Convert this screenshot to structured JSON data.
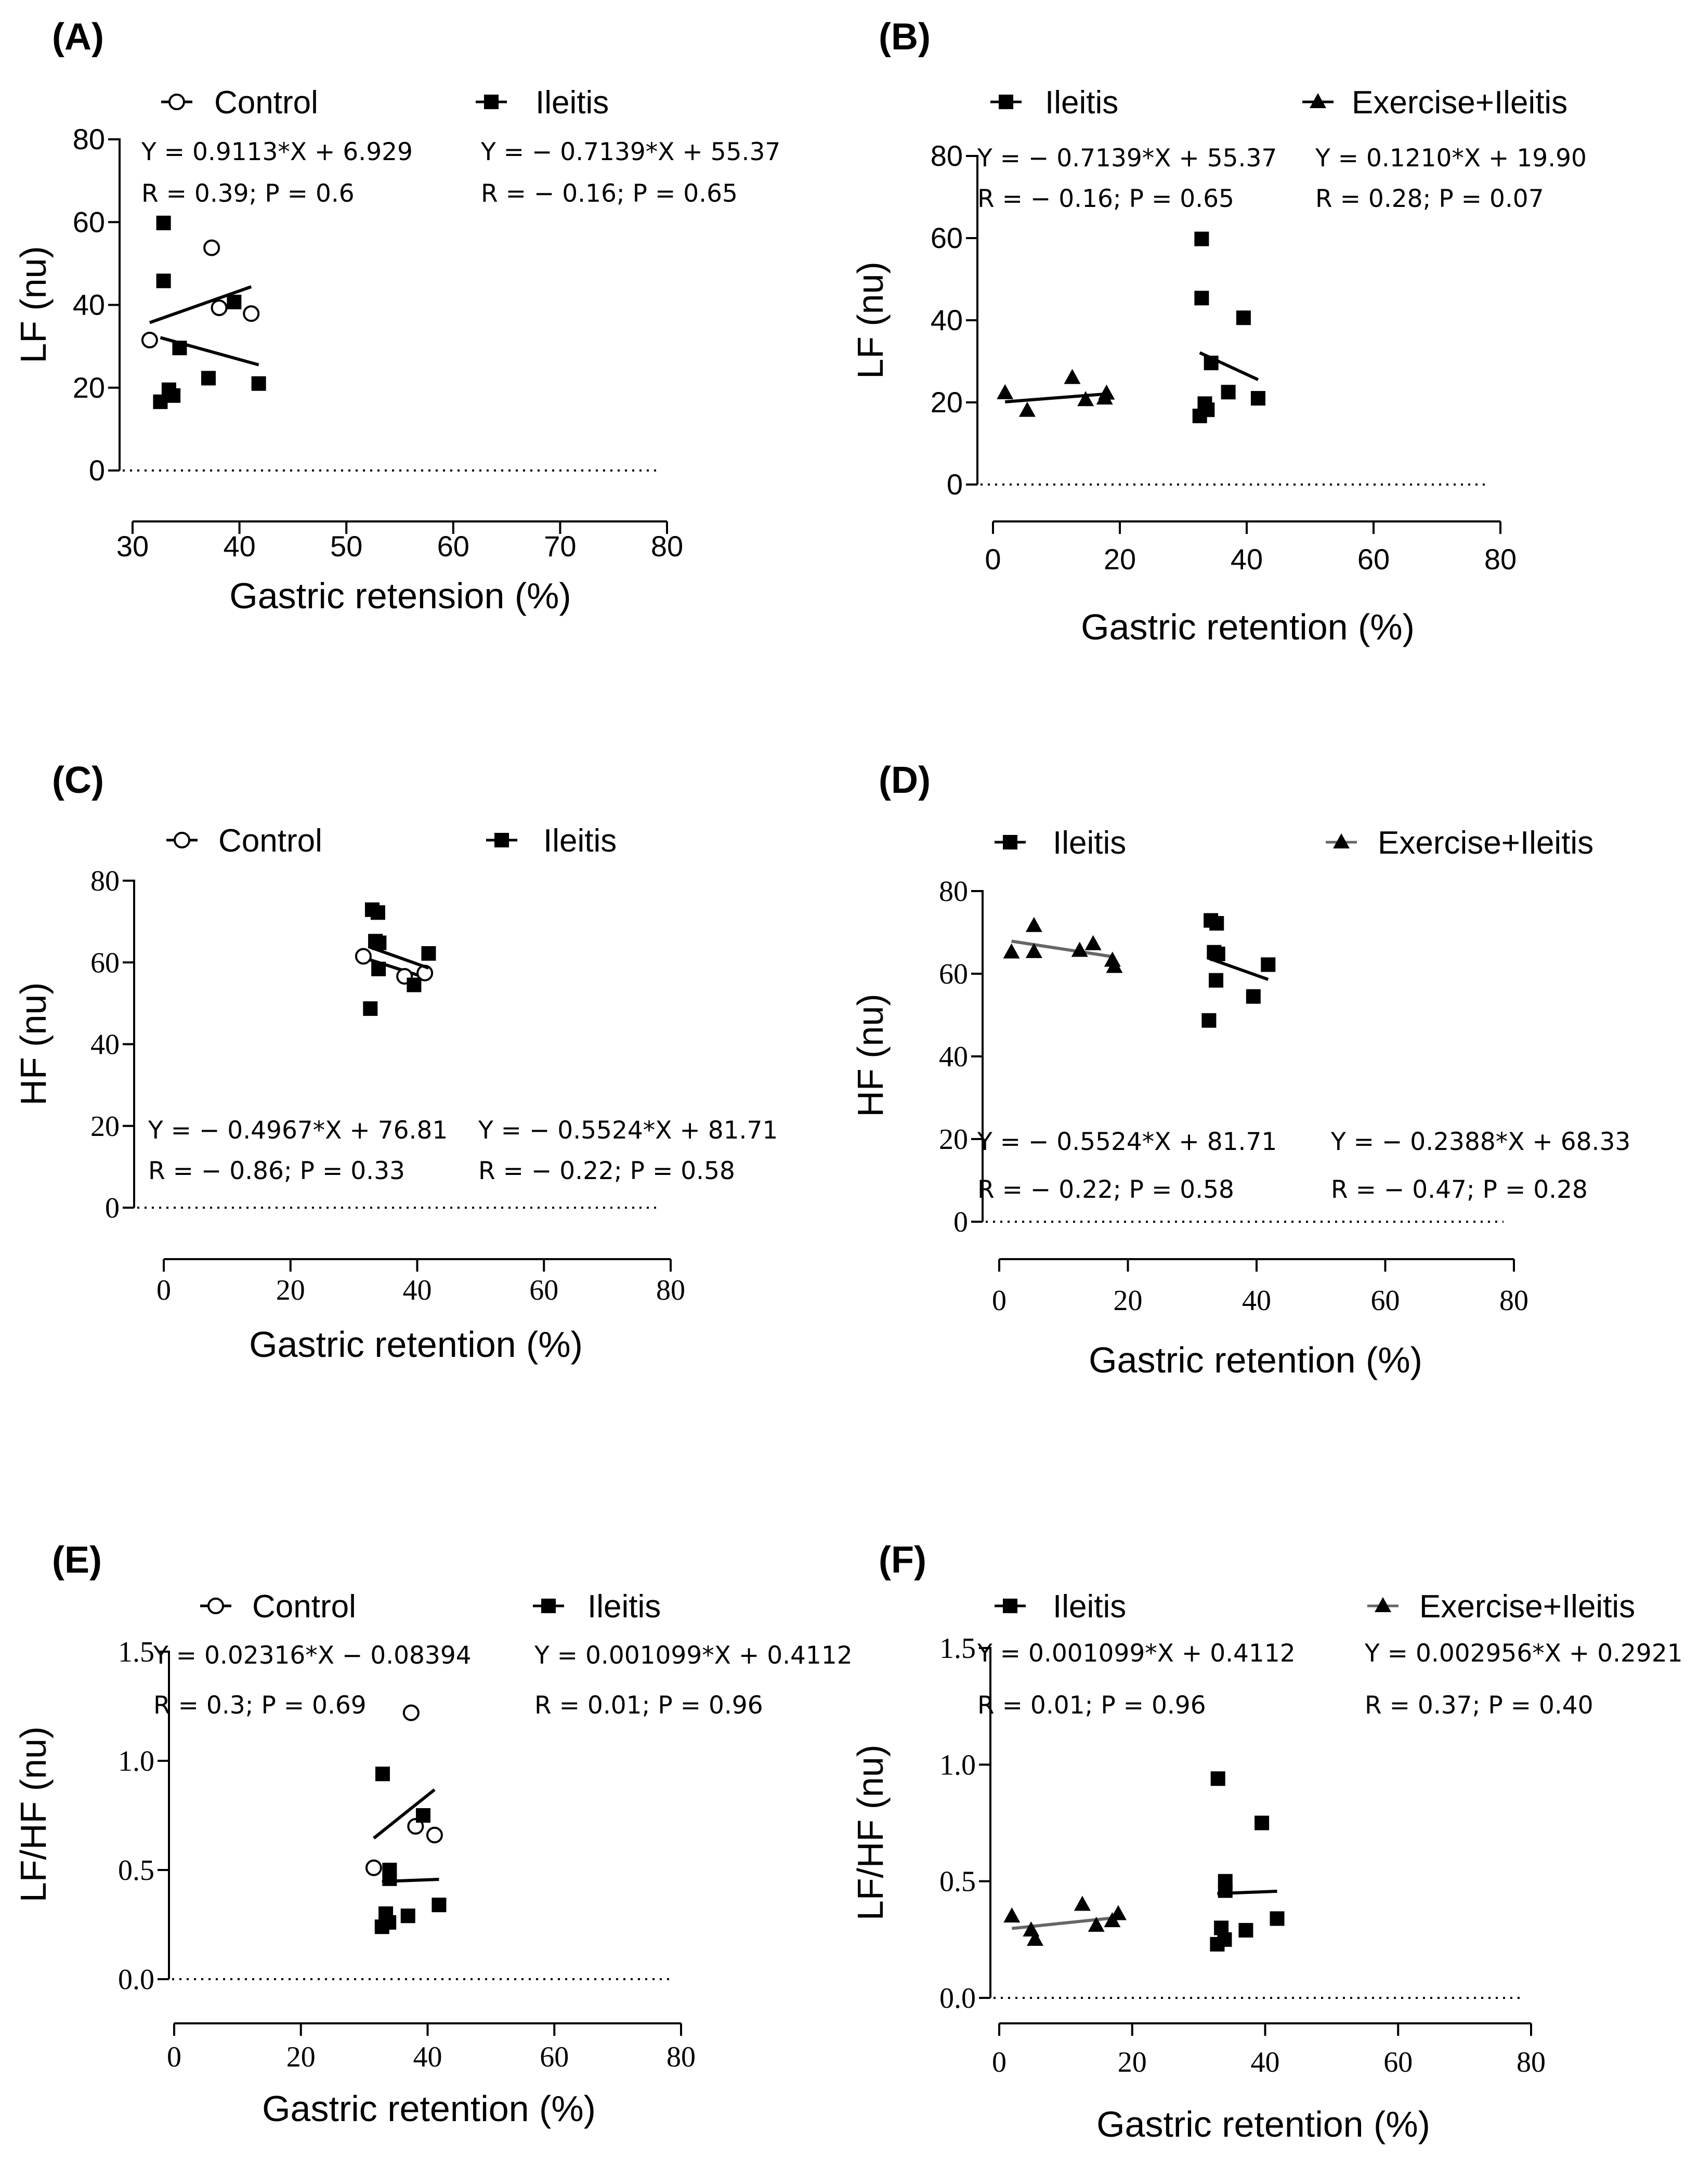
{
  "chart_data": [
    {
      "panel": "(A)",
      "type": "scatter",
      "xlabel": "Gastric retension (%)",
      "ylabel": "LF (nu)",
      "xlim": [
        30,
        80
      ],
      "ylim": [
        0,
        80
      ],
      "xticks": [
        30,
        40,
        50,
        60,
        70,
        80
      ],
      "yticks": [
        0,
        20,
        40,
        60,
        80
      ],
      "legend": "top",
      "series": [
        {
          "name": "Control",
          "marker": "circle-open",
          "color": "#000000",
          "points": [
            [
              31.6,
              31.5
            ],
            [
              37.4,
              53.8
            ],
            [
              38.1,
              39.3
            ],
            [
              41.1,
              37.9
            ]
          ],
          "fit": {
            "x": [
              31.6,
              41.1
            ],
            "equation": "Y = 0.9113*X + 6.929",
            "stats": "R = 0.39; P = 0.6"
          }
        },
        {
          "name": "Ileitis",
          "marker": "square",
          "color": "#000000",
          "points": [
            [
              32.9,
              59.8
            ],
            [
              32.9,
              45.8
            ],
            [
              32.6,
              16.6
            ],
            [
              33.4,
              19.5
            ],
            [
              33.8,
              18.1
            ],
            [
              34.4,
              29.6
            ],
            [
              37.1,
              22.3
            ],
            [
              39.5,
              40.7
            ],
            [
              41.8,
              21.0
            ]
          ],
          "fit": {
            "x": [
              32.6,
              41.8
            ],
            "equation": "Y = − 0.7139*X + 55.37",
            "stats": "R = − 0.16; P = 0.65"
          }
        }
      ]
    },
    {
      "panel": "(B)",
      "type": "scatter",
      "xlabel": "Gastric retention (%)",
      "ylabel": "LF (nu)",
      "xlim": [
        0,
        80
      ],
      "ylim": [
        0,
        80
      ],
      "xticks": [
        0,
        20,
        40,
        60,
        80
      ],
      "yticks": [
        0,
        20,
        40,
        60,
        80
      ],
      "legend": "top",
      "series": [
        {
          "name": "Ileitis",
          "marker": "square",
          "color": "#000000",
          "points": [
            [
              32.9,
              59.8
            ],
            [
              32.9,
              45.4
            ],
            [
              32.6,
              16.7
            ],
            [
              33.4,
              19.7
            ],
            [
              33.8,
              18.2
            ],
            [
              34.4,
              29.6
            ],
            [
              37.1,
              22.5
            ],
            [
              39.5,
              40.6
            ],
            [
              41.8,
              21.0
            ]
          ],
          "fit": {
            "x": [
              32.6,
              41.8
            ],
            "equation": "Y = − 0.7139*X + 55.37",
            "stats": "R = − 0.16; P = 0.65"
          }
        },
        {
          "name": "Exercise+Ileitis",
          "marker": "triangle",
          "color": "#000000",
          "points": [
            [
              1.9,
              22.3
            ],
            [
              5.4,
              18.0
            ],
            [
              12.5,
              26.0
            ],
            [
              14.6,
              20.6
            ],
            [
              17.6,
              21.0
            ],
            [
              17.9,
              22.2
            ]
          ],
          "fit": {
            "x": [
              1.9,
              17.9
            ],
            "equation": "Y = 0.1210*X + 19.90",
            "stats": "R = 0.28; P = 0.07"
          }
        }
      ]
    },
    {
      "panel": "(C)",
      "type": "scatter",
      "xlabel": "Gastric retention (%)",
      "ylabel": "HF (nu)",
      "xlim": [
        0,
        80
      ],
      "ylim": [
        0,
        80
      ],
      "xticks": [
        0,
        20,
        40,
        60,
        80
      ],
      "yticks": [
        0,
        20,
        40,
        60,
        80
      ],
      "legend": "top",
      "series": [
        {
          "name": "Control",
          "marker": "circle-open",
          "color": "#000000",
          "points": [
            [
              31.5,
              61.5
            ],
            [
              38.0,
              56.6
            ],
            [
              41.2,
              57.4
            ]
          ],
          "fit": {
            "x": [
              31.5,
              41.2
            ],
            "equation": "Y = − 0.4967*X + 76.81",
            "stats": "R = − 0.86; P = 0.33"
          }
        },
        {
          "name": "Ileitis",
          "marker": "square",
          "color": "#000000",
          "points": [
            [
              32.9,
              72.9
            ],
            [
              33.8,
              72.2
            ],
            [
              33.4,
              65.2
            ],
            [
              34.0,
              64.8
            ],
            [
              32.6,
              48.7
            ],
            [
              33.9,
              58.4
            ],
            [
              39.5,
              54.5
            ],
            [
              41.8,
              62.2
            ]
          ],
          "fit": {
            "x": [
              32.6,
              41.8
            ],
            "equation": "Y = − 0.5524*X + 81.71",
            "stats": "R = − 0.22; P = 0.58"
          }
        }
      ]
    },
    {
      "panel": "(D)",
      "type": "scatter",
      "xlabel": "Gastric retention (%)",
      "ylabel": "HF (nu)",
      "xlim": [
        0,
        80
      ],
      "ylim": [
        0,
        80
      ],
      "xticks": [
        0,
        20,
        40,
        60,
        80
      ],
      "yticks": [
        0,
        20,
        40,
        60,
        80
      ],
      "legend": "top",
      "series": [
        {
          "name": "Ileitis",
          "marker": "square",
          "color": "#000000",
          "points": [
            [
              32.9,
              72.9
            ],
            [
              33.8,
              72.2
            ],
            [
              33.4,
              65.2
            ],
            [
              34.0,
              64.8
            ],
            [
              33.7,
              58.4
            ],
            [
              32.6,
              48.7
            ],
            [
              39.5,
              54.5
            ],
            [
              41.8,
              62.2
            ]
          ],
          "fit": {
            "x": [
              32.6,
              41.8
            ],
            "equation": "Y = − 0.5524*X + 81.71",
            "stats": "R = − 0.22; P = 0.58"
          }
        },
        {
          "name": "Exercise+Ileitis",
          "marker": "triangle",
          "color": "#000000",
          "fit_color": "#666666",
          "points": [
            [
              1.9,
              65.2
            ],
            [
              5.4,
              71.6
            ],
            [
              5.4,
              65.3
            ],
            [
              12.5,
              65.6
            ],
            [
              14.6,
              67.2
            ],
            [
              17.6,
              63.2
            ],
            [
              17.9,
              61.7
            ]
          ],
          "fit": {
            "x": [
              1.9,
              17.9
            ],
            "equation": "Y = − 0.2388*X + 68.33",
            "stats": "R = − 0.47; P = 0.28"
          }
        }
      ]
    },
    {
      "panel": "(E)",
      "type": "scatter",
      "xlabel": "Gastric retention (%)",
      "ylabel": "LF/HF (nu)",
      "xlim": [
        0,
        80
      ],
      "ylim": [
        0,
        1.5
      ],
      "xticks": [
        0,
        20,
        40,
        60,
        80
      ],
      "yticks": [
        0.0,
        0.5,
        1.0,
        1.5
      ],
      "ytick_labels": [
        "0.0",
        "0.5",
        "1.0",
        "1.5"
      ],
      "legend": "top",
      "series": [
        {
          "name": "Control",
          "marker": "circle-open",
          "color": "#000000",
          "points": [
            [
              31.5,
              0.51
            ],
            [
              37.4,
              1.22
            ],
            [
              38.1,
              0.7
            ],
            [
              41.1,
              0.66
            ]
          ],
          "fit": {
            "x": [
              31.5,
              41.1
            ],
            "equation": "Y = 0.02316*X − 0.08394",
            "stats": "R = 0.3; P = 0.69"
          }
        },
        {
          "name": "Ileitis",
          "marker": "square",
          "color": "#000000",
          "points": [
            [
              32.9,
              0.94
            ],
            [
              34.0,
              0.5
            ],
            [
              34.0,
              0.46
            ],
            [
              33.4,
              0.3
            ],
            [
              32.8,
              0.24
            ],
            [
              33.9,
              0.26
            ],
            [
              36.9,
              0.29
            ],
            [
              39.3,
              0.75
            ],
            [
              41.8,
              0.34
            ]
          ],
          "fit": {
            "x": [
              32.8,
              41.8
            ],
            "equation": "Y = 0.001099*X + 0.4112",
            "stats": "R = 0.01; P = 0.96"
          }
        }
      ]
    },
    {
      "panel": "(F)",
      "type": "scatter",
      "xlabel": "Gastric retention (%)",
      "ylabel": "LF/HF (nu)",
      "xlim": [
        0,
        80
      ],
      "ylim": [
        0,
        1.5
      ],
      "xticks": [
        0,
        20,
        40,
        60,
        80
      ],
      "yticks": [
        0.0,
        0.5,
        1.0,
        1.5
      ],
      "ytick_labels": [
        "0.0",
        "0.5",
        "1.0",
        "1.5"
      ],
      "legend": "top",
      "series": [
        {
          "name": "Ileitis",
          "marker": "square",
          "color": "#000000",
          "points": [
            [
              32.9,
              0.94
            ],
            [
              34.0,
              0.5
            ],
            [
              34.0,
              0.46
            ],
            [
              33.4,
              0.3
            ],
            [
              32.8,
              0.23
            ],
            [
              33.9,
              0.25
            ],
            [
              37.1,
              0.29
            ],
            [
              39.5,
              0.75
            ],
            [
              41.8,
              0.34
            ]
          ],
          "fit": {
            "x": [
              32.8,
              41.8
            ],
            "equation": "Y = 0.001099*X + 0.4112",
            "stats": "R = 0.01; P = 0.96"
          }
        },
        {
          "name": "Exercise+Ileitis",
          "marker": "triangle",
          "color": "#000000",
          "fit_color": "#666666",
          "points": [
            [
              1.9,
              0.35
            ],
            [
              4.8,
              0.29
            ],
            [
              5.4,
              0.25
            ],
            [
              12.5,
              0.4
            ],
            [
              14.6,
              0.31
            ],
            [
              17.0,
              0.33
            ],
            [
              17.9,
              0.36
            ]
          ],
          "fit": {
            "x": [
              1.9,
              17.9
            ],
            "equation": "Y = 0.002956*X + 0.2921",
            "stats": "R = 0.37; P = 0.40"
          }
        }
      ]
    }
  ]
}
